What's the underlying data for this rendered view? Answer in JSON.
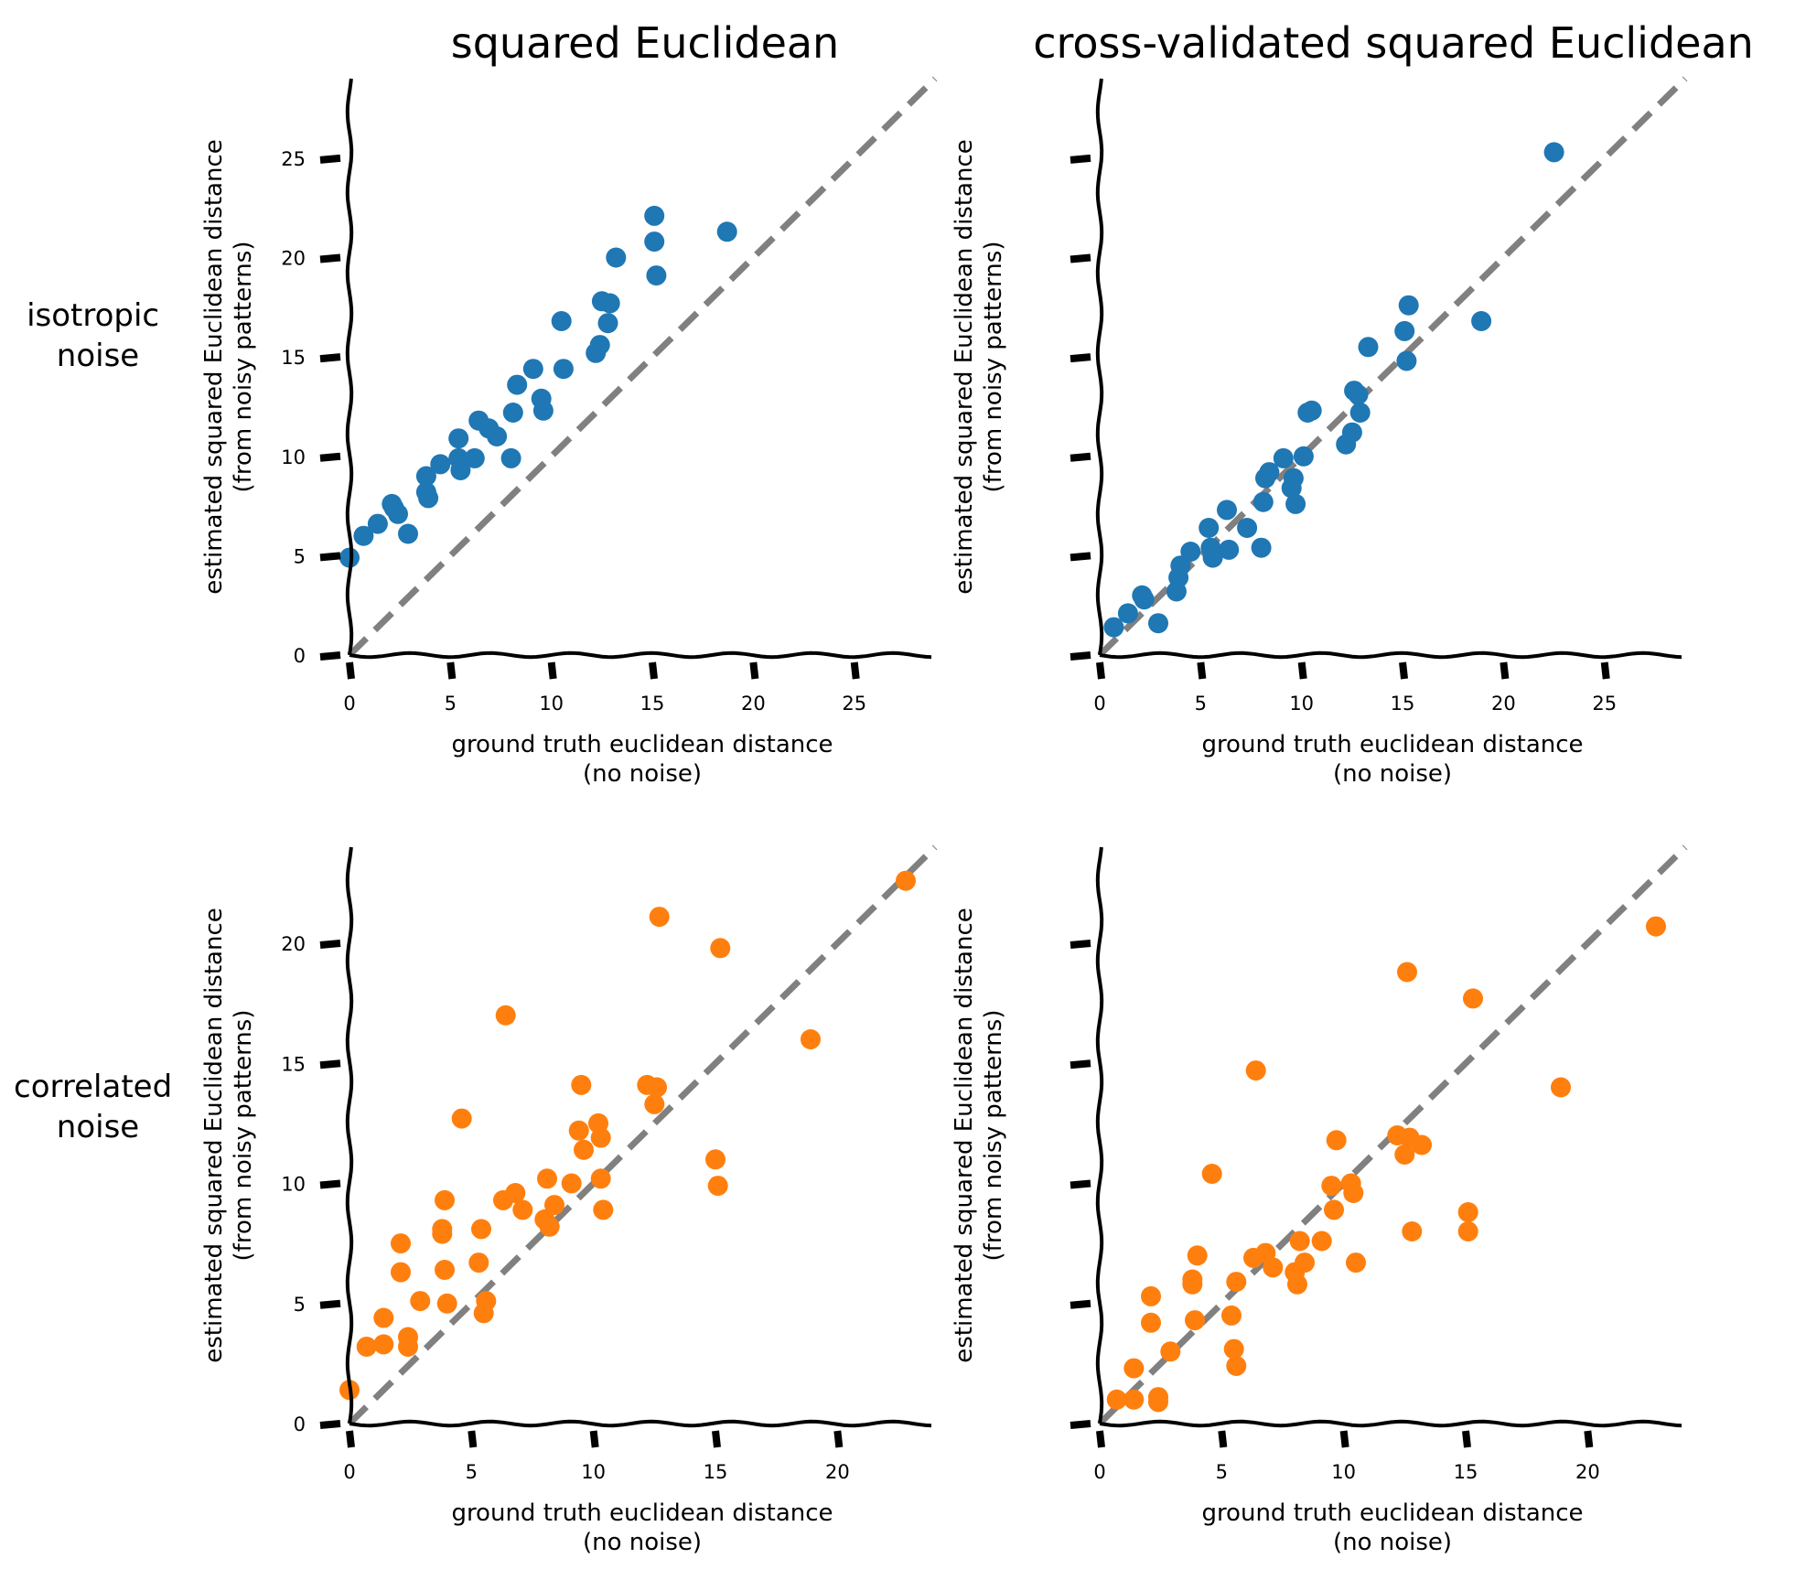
{
  "figure": {
    "column_titles": [
      "squared Euclidean",
      "cross-validated squared Euclidean"
    ],
    "row_labels": [
      [
        "isotropic",
        "noise"
      ],
      [
        "correlated",
        "noise"
      ]
    ],
    "colors": {
      "isotropic": "#1f77b4",
      "correlated": "#ff7f0e",
      "identity_line": "#808080",
      "axis": "#000000"
    }
  },
  "chart_data": [
    {
      "type": "scatter",
      "panel": "top-left",
      "title": "squared Euclidean",
      "row_label": "isotropic noise",
      "xlabel": [
        "ground truth euclidean distance",
        "(no noise)"
      ],
      "ylabel": [
        "estimated squared Euclidean distance",
        "(from noisy patterns)"
      ],
      "xlim": [
        0,
        29
      ],
      "ylim": [
        0,
        29
      ],
      "xticks": [
        0,
        5,
        10,
        15,
        20,
        25
      ],
      "yticks": [
        0,
        5,
        10,
        15,
        20,
        25
      ],
      "ytick_labels_visible": true,
      "identity_line": true,
      "color": "#1f77b4",
      "x": [
        0.0,
        0.7,
        1.4,
        2.1,
        2.2,
        2.4,
        2.9,
        3.8,
        3.8,
        3.9,
        4.5,
        5.4,
        5.4,
        5.5,
        6.2,
        6.4,
        6.9,
        7.3,
        8.0,
        8.1,
        8.3,
        9.1,
        9.5,
        9.6,
        10.5,
        10.6,
        12.2,
        12.4,
        12.5,
        12.8,
        12.9,
        13.2,
        15.1,
        15.1,
        15.2,
        18.7
      ],
      "y": [
        4.9,
        6.0,
        6.6,
        7.6,
        7.4,
        7.1,
        6.1,
        9.0,
        8.2,
        7.9,
        9.6,
        10.9,
        9.9,
        9.3,
        9.9,
        11.8,
        11.4,
        11.0,
        9.9,
        12.2,
        13.6,
        14.4,
        12.9,
        12.3,
        16.8,
        14.4,
        15.2,
        15.6,
        17.8,
        16.7,
        17.7,
        20.0,
        22.1,
        20.8,
        19.1,
        21.3
      ]
    },
    {
      "type": "scatter",
      "panel": "top-right",
      "title": "cross-validated squared Euclidean",
      "row_label": "isotropic noise",
      "xlabel": [
        "ground truth euclidean distance",
        "(no noise)"
      ],
      "ylabel": [
        "estimated squared Euclidean distance",
        "(from noisy patterns)"
      ],
      "xlim": [
        0,
        29
      ],
      "ylim": [
        0,
        29
      ],
      "xticks": [
        0,
        5,
        10,
        15,
        20,
        25
      ],
      "yticks": [
        0,
        5,
        10,
        15,
        20,
        25
      ],
      "ytick_labels_visible": false,
      "identity_line": true,
      "color": "#1f77b4",
      "x": [
        0.7,
        1.4,
        2.1,
        2.2,
        2.9,
        3.8,
        3.9,
        4.0,
        4.5,
        5.4,
        5.5,
        5.6,
        6.3,
        6.4,
        7.3,
        8.0,
        8.1,
        8.2,
        8.4,
        9.1,
        9.5,
        9.6,
        9.7,
        10.1,
        10.3,
        10.5,
        12.2,
        12.5,
        12.6,
        12.8,
        12.9,
        13.3,
        15.1,
        15.2,
        15.3,
        18.9,
        22.5
      ],
      "y": [
        1.4,
        2.1,
        3.0,
        2.8,
        1.6,
        3.2,
        3.9,
        4.5,
        5.2,
        6.4,
        5.4,
        4.9,
        7.3,
        5.3,
        6.4,
        5.4,
        7.7,
        8.9,
        9.2,
        9.9,
        8.4,
        8.9,
        7.6,
        10.0,
        12.2,
        12.3,
        10.6,
        11.2,
        13.3,
        13.1,
        12.2,
        15.5,
        16.3,
        14.8,
        17.6,
        16.8,
        25.3
      ]
    },
    {
      "type": "scatter",
      "panel": "bottom-left",
      "title": "",
      "row_label": "correlated noise",
      "xlabel": [
        "ground truth euclidean distance",
        "(no noise)"
      ],
      "ylabel": [
        "estimated squared Euclidean distance",
        "(from noisy patterns)"
      ],
      "xlim": [
        0,
        24
      ],
      "ylim": [
        0,
        24
      ],
      "xticks": [
        0,
        5,
        10,
        15,
        20
      ],
      "yticks": [
        0,
        5,
        10,
        15,
        20
      ],
      "ytick_labels_visible": true,
      "identity_line": true,
      "color": "#ff7f0e",
      "x": [
        0.0,
        0.7,
        1.4,
        1.4,
        2.1,
        2.1,
        2.4,
        2.4,
        2.9,
        3.8,
        3.8,
        3.9,
        3.9,
        4.0,
        4.6,
        5.3,
        5.4,
        5.5,
        5.6,
        6.3,
        6.4,
        6.8,
        7.1,
        8.0,
        8.1,
        8.2,
        8.4,
        9.1,
        9.4,
        9.5,
        9.6,
        10.2,
        10.3,
        10.3,
        10.4,
        12.2,
        12.5,
        12.6,
        12.7,
        15.0,
        15.1,
        15.2,
        18.9,
        22.8
      ],
      "y": [
        1.4,
        3.2,
        4.4,
        3.3,
        7.5,
        6.3,
        3.6,
        3.2,
        5.1,
        8.1,
        7.9,
        6.4,
        9.3,
        5.0,
        12.7,
        6.7,
        8.1,
        4.6,
        5.1,
        9.3,
        17.0,
        9.6,
        8.9,
        8.5,
        10.2,
        8.2,
        9.1,
        10.0,
        12.2,
        14.1,
        11.4,
        12.5,
        11.9,
        10.2,
        8.9,
        14.1,
        13.3,
        14.0,
        21.1,
        11.0,
        9.9,
        19.8,
        16.0,
        22.6
      ]
    },
    {
      "type": "scatter",
      "panel": "bottom-right",
      "title": "",
      "row_label": "correlated noise",
      "xlabel": [
        "ground truth euclidean distance",
        "(no noise)"
      ],
      "ylabel": [
        "estimated squared Euclidean distance",
        "(from noisy patterns)"
      ],
      "xlim": [
        0,
        24
      ],
      "ylim": [
        0,
        24
      ],
      "xticks": [
        0,
        5,
        10,
        15,
        20
      ],
      "yticks": [
        0,
        5,
        10,
        15,
        20
      ],
      "ytick_labels_visible": false,
      "identity_line": true,
      "color": "#ff7f0e",
      "x": [
        0.7,
        1.4,
        1.4,
        2.1,
        2.1,
        2.4,
        2.4,
        2.9,
        3.8,
        3.8,
        3.9,
        4.0,
        4.6,
        5.4,
        5.5,
        5.6,
        5.6,
        6.3,
        6.4,
        6.8,
        7.1,
        8.0,
        8.1,
        8.2,
        8.4,
        9.1,
        9.5,
        9.6,
        9.7,
        10.3,
        10.4,
        10.5,
        12.2,
        12.5,
        12.6,
        12.7,
        12.8,
        13.2,
        15.1,
        15.1,
        15.3,
        18.9,
        22.8
      ],
      "y": [
        1.0,
        1.0,
        2.3,
        4.2,
        5.3,
        1.1,
        0.9,
        3.0,
        6.0,
        5.8,
        4.3,
        7.0,
        10.4,
        4.5,
        3.1,
        5.9,
        2.4,
        6.9,
        14.7,
        7.1,
        6.5,
        6.3,
        5.8,
        7.6,
        6.7,
        7.6,
        9.9,
        8.9,
        11.8,
        10.0,
        9.6,
        6.7,
        12.0,
        11.2,
        18.8,
        11.9,
        8.0,
        11.6,
        8.8,
        8.0,
        17.7,
        14.0,
        20.7
      ]
    }
  ]
}
